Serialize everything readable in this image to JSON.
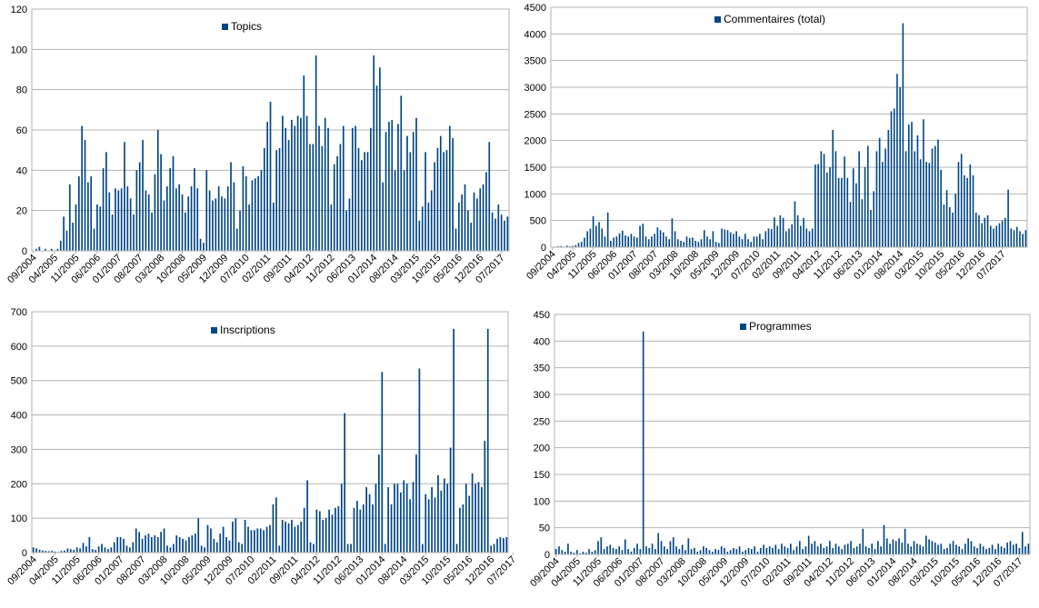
{
  "palette": {
    "bar": "#004586",
    "grid": "#b3b3b3",
    "axis": "#000000"
  },
  "x_tick_labels": [
    "09/2004",
    "04/2005",
    "11/2005",
    "06/2006",
    "01/2007",
    "08/2007",
    "03/2008",
    "10/2008",
    "05/2009",
    "12/2009",
    "07/2010",
    "02/2011",
    "09/2011",
    "04/2012",
    "11/2012",
    "06/2013",
    "01/2014",
    "08/2014",
    "03/2015",
    "10/2015",
    "05/2016",
    "12/2016",
    "07/2017"
  ],
  "chart_data": [
    {
      "type": "bar",
      "legend": "Topics",
      "ylim": [
        0,
        120
      ],
      "yticks": [
        "0",
        "20",
        "40",
        "60",
        "80",
        "100",
        "120"
      ],
      "x_start": "09/2004",
      "x_interval": "month",
      "values": [
        0,
        1,
        2,
        0,
        1,
        0,
        1,
        0,
        1,
        5,
        17,
        10,
        33,
        14,
        23,
        37,
        62,
        55,
        34,
        37,
        11,
        23,
        22,
        41,
        49,
        29,
        18,
        31,
        30,
        31,
        54,
        32,
        26,
        18,
        40,
        44,
        55,
        30,
        28,
        19,
        38,
        60,
        48,
        25,
        32,
        41,
        47,
        31,
        33,
        28,
        19,
        27,
        32,
        41,
        31,
        6,
        4,
        40,
        30,
        25,
        26,
        32,
        27,
        26,
        32,
        44,
        34,
        11,
        20,
        42,
        37,
        23,
        35,
        36,
        37,
        40,
        51,
        64,
        74,
        24,
        50,
        51,
        67,
        61,
        55,
        65,
        62,
        67,
        66,
        87,
        67,
        53,
        53,
        97,
        62,
        52,
        66,
        61,
        23,
        43,
        47,
        53,
        62,
        20,
        26,
        61,
        62,
        51,
        45,
        49,
        49,
        61,
        97,
        82,
        91,
        34,
        59,
        64,
        65,
        40,
        63,
        77,
        40,
        57,
        49,
        59,
        66,
        15,
        22,
        49,
        24,
        30,
        44,
        51,
        57,
        49,
        50,
        62,
        56,
        11,
        24,
        28,
        33,
        20,
        14,
        29,
        26,
        31,
        33,
        39,
        54,
        19,
        16,
        23,
        18,
        15,
        17
      ]
    },
    {
      "type": "bar",
      "legend": "Commentaires (total)",
      "ylim": [
        0,
        4500
      ],
      "yticks": [
        "0",
        "500",
        "1000",
        "1500",
        "2000",
        "2500",
        "3000",
        "3500",
        "4000",
        "4500"
      ],
      "x_start": "09/2004",
      "x_interval": "month",
      "values": [
        5,
        10,
        15,
        20,
        10,
        30,
        15,
        25,
        40,
        80,
        100,
        180,
        300,
        350,
        580,
        400,
        470,
        350,
        200,
        650,
        120,
        180,
        200,
        260,
        310,
        220,
        200,
        250,
        200,
        180,
        400,
        440,
        200,
        150,
        200,
        250,
        370,
        320,
        280,
        200,
        150,
        540,
        300,
        150,
        120,
        100,
        200,
        170,
        180,
        120,
        100,
        150,
        320,
        200,
        150,
        300,
        100,
        80,
        350,
        330,
        320,
        280,
        250,
        300,
        200,
        150,
        250,
        150,
        100,
        200,
        200,
        250,
        150,
        300,
        350,
        340,
        560,
        400,
        600,
        550,
        300,
        350,
        430,
        860,
        600,
        400,
        550,
        350,
        300,
        350,
        1550,
        1560,
        1800,
        1750,
        1400,
        1500,
        2200,
        1800,
        1300,
        1300,
        1700,
        1300,
        850,
        1480,
        1200,
        1800,
        900,
        1500,
        1900,
        700,
        1050,
        1800,
        2050,
        1600,
        1850,
        2200,
        2550,
        2600,
        3250,
        3000,
        4200,
        1800,
        2300,
        2350,
        1800,
        2100,
        1650,
        2400,
        1600,
        1580,
        1850,
        1900,
        2020,
        1450,
        800,
        1070,
        750,
        650,
        1000,
        1600,
        1750,
        1350,
        1300,
        1550,
        1350,
        650,
        600,
        450,
        550,
        600,
        400,
        350,
        400,
        450,
        500,
        550,
        1080,
        350,
        320,
        380,
        300,
        250,
        320
      ]
    },
    {
      "type": "bar",
      "legend": "Inscriptions",
      "ylim": [
        0,
        700
      ],
      "yticks": [
        "0",
        "100",
        "200",
        "300",
        "400",
        "500",
        "600",
        "700"
      ],
      "x_start": "09/2004",
      "x_interval": "month",
      "values": [
        15,
        12,
        8,
        6,
        5,
        4,
        5,
        3,
        2,
        5,
        6,
        12,
        10,
        8,
        15,
        12,
        28,
        18,
        45,
        10,
        8,
        18,
        25,
        15,
        10,
        15,
        30,
        45,
        45,
        40,
        20,
        15,
        30,
        70,
        60,
        40,
        50,
        55,
        45,
        50,
        45,
        60,
        70,
        20,
        15,
        25,
        50,
        45,
        40,
        35,
        45,
        50,
        55,
        100,
        20,
        15,
        80,
        70,
        40,
        30,
        55,
        75,
        45,
        35,
        90,
        100,
        30,
        25,
        95,
        75,
        65,
        65,
        70,
        70,
        65,
        75,
        80,
        140,
        160,
        20,
        95,
        90,
        85,
        95,
        75,
        80,
        90,
        130,
        210,
        30,
        25,
        125,
        120,
        95,
        100,
        125,
        110,
        130,
        135,
        200,
        405,
        25,
        25,
        130,
        150,
        125,
        140,
        190,
        170,
        140,
        200,
        285,
        525,
        25,
        190,
        140,
        200,
        200,
        175,
        210,
        200,
        155,
        205,
        285,
        535,
        25,
        170,
        155,
        190,
        160,
        225,
        180,
        215,
        200,
        305,
        650,
        25,
        130,
        140,
        200,
        165,
        230,
        200,
        205,
        190,
        325,
        650,
        20,
        25,
        40,
        45,
        42,
        45
      ]
    },
    {
      "type": "bar",
      "legend": "Programmes",
      "ylim": [
        0,
        450
      ],
      "yticks": [
        "0",
        "50",
        "100",
        "150",
        "200",
        "250",
        "300",
        "350",
        "400",
        "450"
      ],
      "x_start": "09/2004",
      "x_interval": "month",
      "values": [
        10,
        15,
        8,
        5,
        20,
        5,
        3,
        8,
        2,
        5,
        3,
        10,
        5,
        8,
        25,
        32,
        10,
        15,
        18,
        12,
        10,
        15,
        8,
        28,
        10,
        5,
        12,
        20,
        10,
        418,
        15,
        12,
        20,
        10,
        40,
        25,
        15,
        10,
        25,
        32,
        15,
        10,
        18,
        8,
        30,
        10,
        12,
        5,
        8,
        15,
        12,
        8,
        5,
        10,
        8,
        15,
        12,
        5,
        8,
        12,
        10,
        15,
        5,
        8,
        12,
        10,
        15,
        5,
        12,
        18,
        12,
        15,
        12,
        18,
        10,
        20,
        15,
        12,
        20,
        8,
        15,
        25,
        10,
        15,
        35,
        20,
        25,
        15,
        20,
        12,
        15,
        25,
        12,
        20,
        15,
        10,
        18,
        20,
        25,
        12,
        15,
        20,
        48,
        15,
        12,
        20,
        10,
        25,
        15,
        55,
        30,
        20,
        28,
        25,
        30,
        22,
        48,
        20,
        15,
        25,
        20,
        18,
        15,
        35,
        28,
        25,
        22,
        18,
        20,
        10,
        12,
        20,
        25,
        18,
        15,
        10,
        20,
        30,
        25,
        15,
        12,
        20,
        15,
        10,
        12,
        18,
        10,
        20,
        15,
        12,
        22,
        25,
        18,
        20,
        12,
        42,
        15,
        20
      ]
    }
  ]
}
